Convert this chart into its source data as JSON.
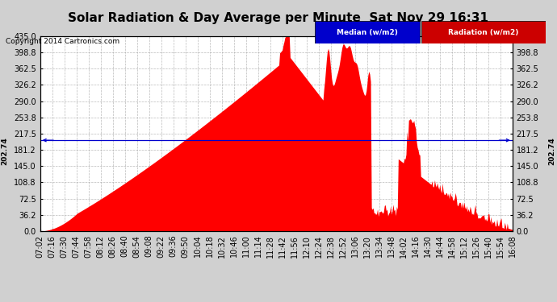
{
  "title": "Solar Radiation & Day Average per Minute  Sat Nov 29 16:31",
  "copyright": "Copyright 2014 Cartronics.com",
  "legend_labels": [
    "Median (w/m2)",
    "Radiation (w/m2)"
  ],
  "legend_colors": [
    "#0000cd",
    "#ff0000"
  ],
  "median_value": 202.74,
  "y_ticks": [
    0.0,
    36.2,
    72.5,
    108.8,
    145.0,
    181.2,
    217.5,
    253.8,
    290.0,
    326.2,
    362.5,
    398.8,
    435.0
  ],
  "ymax": 435.0,
  "ymin": 0.0,
  "bg_color": "#d0d0d0",
  "plot_bg_color": "#ffffff",
  "bar_color": "#ff0000",
  "median_line_color": "#0000cd",
  "grid_color": "#aaaaaa",
  "title_fontsize": 11,
  "copyright_fontsize": 7,
  "tick_fontsize": 7,
  "legend_blue": "#0000cc",
  "legend_red": "#cc0000"
}
